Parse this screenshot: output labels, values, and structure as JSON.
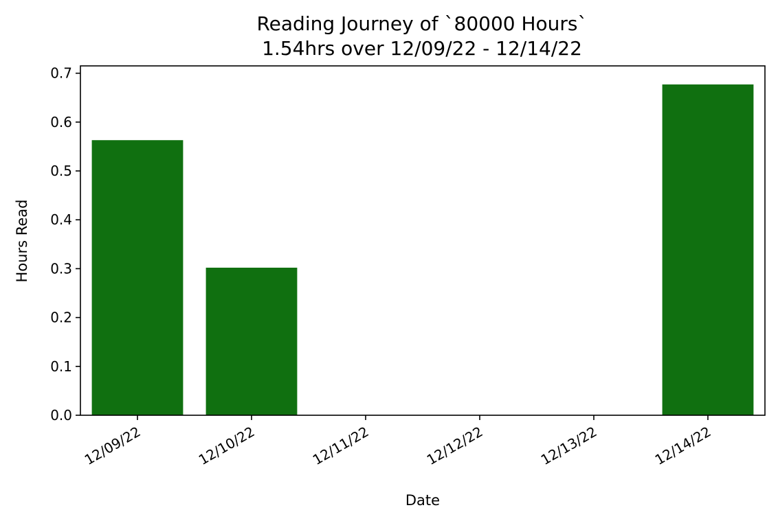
{
  "chart_data": {
    "type": "bar",
    "title": "Reading Journey of `80000 Hours`",
    "subtitle": "1.54hrs over 12/09/22 - 12/14/22",
    "xlabel": "Date",
    "ylabel": "Hours Read",
    "categories": [
      "12/09/22",
      "12/10/22",
      "12/11/22",
      "12/12/22",
      "12/13/22",
      "12/14/22"
    ],
    "values": [
      0.563,
      0.302,
      0.0,
      0.0,
      0.0,
      0.677
    ],
    "ylim": [
      0,
      0.715
    ],
    "yticks": [
      0.0,
      0.1,
      0.2,
      0.3,
      0.4,
      0.5,
      0.6,
      0.7
    ],
    "ytick_labels": [
      "0.0",
      "0.1",
      "0.2",
      "0.3",
      "0.4",
      "0.5",
      "0.6",
      "0.7"
    ],
    "bar_color": "#107010",
    "grid": false,
    "legend": "none"
  }
}
